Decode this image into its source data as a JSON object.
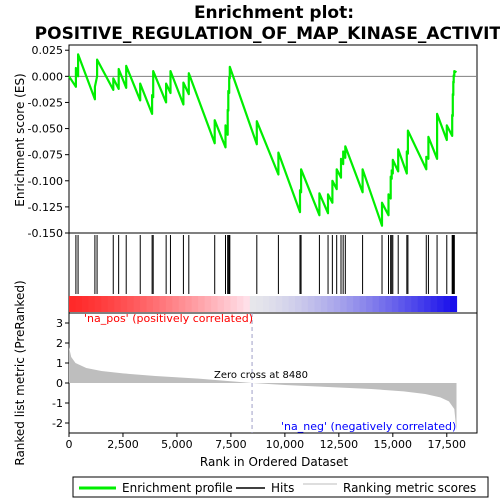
{
  "chart_data": {
    "type": "line",
    "title": "Enrichment plot:\nPOSITIVE_REGULATION_OF_MAP_KINASE_ACTIVITY",
    "x_axis": {
      "label": "Rank in Ordered Dataset",
      "range": [
        0,
        18900
      ],
      "ticks": [
        0,
        2500,
        5000,
        7500,
        10000,
        12500,
        15000,
        17500
      ],
      "tick_labels": [
        "0",
        "2,500",
        "5,000",
        "7,500",
        "10,000",
        "12,500",
        "15,000",
        "17,500"
      ]
    },
    "es_panel": {
      "ylabel": "Enrichment score (ES)",
      "ylim": [
        -0.15,
        0.03
      ],
      "ticks": [
        0.025,
        0.0,
        -0.025,
        -0.05,
        -0.075,
        -0.1,
        -0.125,
        -0.15
      ],
      "tick_labels": [
        "0.025",
        "0.000",
        "-0.025",
        "-0.050",
        "-0.075",
        "-0.100",
        "-0.125",
        "-0.150"
      ],
      "color": "#00ee00"
    },
    "ranked_panel": {
      "ylabel": "Ranked list metric (PreRanked)",
      "ylim": [
        -2.5,
        3.5
      ],
      "ticks": [
        3,
        2,
        1,
        0,
        -1,
        -2
      ],
      "tick_labels": [
        "3",
        "2",
        "1",
        "0",
        "-1",
        "-2"
      ],
      "color": "#bebebe",
      "metric_curve": [
        [
          0,
          1.8
        ],
        [
          100,
          1.3
        ],
        [
          300,
          1.0
        ],
        [
          800,
          0.75
        ],
        [
          1500,
          0.6
        ],
        [
          2500,
          0.48
        ],
        [
          4000,
          0.35
        ],
        [
          6000,
          0.22
        ],
        [
          8480,
          0.0
        ],
        [
          10000,
          -0.1
        ],
        [
          12000,
          -0.2
        ],
        [
          14000,
          -0.3
        ],
        [
          15500,
          -0.42
        ],
        [
          16500,
          -0.55
        ],
        [
          17200,
          -0.72
        ],
        [
          17600,
          -0.92
        ],
        [
          17850,
          -1.3
        ],
        [
          17950,
          -2.4
        ]
      ]
    },
    "zero_cross_label": "Zero cross at 8480",
    "zero_cross": 8480,
    "pos_label": "'na_pos' (positively correlated)",
    "neg_label": "'na_neg' (negatively correlated)",
    "hits": [
      320,
      420,
      1200,
      1300,
      2050,
      2300,
      2650,
      3300,
      3850,
      3900,
      4500,
      4700,
      5300,
      5550,
      6750,
      7250,
      7350,
      7380,
      7420,
      7450,
      8700,
      9700,
      10700,
      10750,
      11600,
      12000,
      12200,
      12400,
      12600,
      12700,
      12800,
      13600,
      14500,
      14800,
      14900,
      14950,
      15000,
      15250,
      15650,
      15700,
      16550,
      16650,
      17050,
      17500,
      17750,
      17780,
      17800,
      17820,
      17850
    ],
    "es_curve": [
      [
        0,
        0.0
      ],
      [
        320,
        -0.01
      ],
      [
        320,
        0.008
      ],
      [
        420,
        0.0
      ],
      [
        420,
        0.021
      ],
      [
        1200,
        -0.022
      ],
      [
        1200,
        -0.01
      ],
      [
        1300,
        0.0
      ],
      [
        1300,
        0.016
      ],
      [
        2050,
        -0.013
      ],
      [
        2050,
        -0.002
      ],
      [
        2300,
        -0.012
      ],
      [
        2300,
        0.007
      ],
      [
        2650,
        -0.011
      ],
      [
        2650,
        0.01
      ],
      [
        3300,
        -0.023
      ],
      [
        3300,
        -0.007
      ],
      [
        3850,
        -0.036
      ],
      [
        3850,
        -0.018
      ],
      [
        3900,
        -0.02
      ],
      [
        3900,
        0.005
      ],
      [
        4500,
        -0.025
      ],
      [
        4500,
        -0.007
      ],
      [
        4700,
        -0.016
      ],
      [
        4700,
        0.005
      ],
      [
        5300,
        -0.027
      ],
      [
        5300,
        -0.006
      ],
      [
        5550,
        -0.017
      ],
      [
        5550,
        0.003
      ],
      [
        6750,
        -0.064
      ],
      [
        6750,
        -0.042
      ],
      [
        7250,
        -0.068
      ],
      [
        7250,
        -0.047
      ],
      [
        7350,
        -0.056
      ],
      [
        7350,
        -0.032
      ],
      [
        7380,
        -0.033
      ],
      [
        7380,
        -0.014
      ],
      [
        7420,
        -0.016
      ],
      [
        7420,
        -0.001
      ],
      [
        7450,
        -0.002
      ],
      [
        7450,
        0.009
      ],
      [
        8700,
        -0.065
      ],
      [
        8700,
        -0.043
      ],
      [
        9700,
        -0.094
      ],
      [
        9700,
        -0.073
      ],
      [
        10700,
        -0.13
      ],
      [
        10700,
        -0.109
      ],
      [
        10750,
        -0.111
      ],
      [
        10750,
        -0.089
      ],
      [
        11600,
        -0.133
      ],
      [
        11600,
        -0.112
      ],
      [
        12000,
        -0.131
      ],
      [
        12000,
        -0.113
      ],
      [
        12200,
        -0.121
      ],
      [
        12200,
        -0.1
      ],
      [
        12400,
        -0.108
      ],
      [
        12400,
        -0.089
      ],
      [
        12600,
        -0.097
      ],
      [
        12600,
        -0.079
      ],
      [
        12700,
        -0.084
      ],
      [
        12700,
        -0.072
      ],
      [
        12800,
        -0.078
      ],
      [
        12800,
        -0.067
      ],
      [
        13600,
        -0.111
      ],
      [
        13600,
        -0.089
      ],
      [
        14500,
        -0.143
      ],
      [
        14500,
        -0.121
      ],
      [
        14800,
        -0.133
      ],
      [
        14800,
        -0.113
      ],
      [
        14900,
        -0.117
      ],
      [
        14900,
        -0.096
      ],
      [
        14950,
        -0.098
      ],
      [
        14950,
        -0.09
      ],
      [
        15000,
        -0.093
      ],
      [
        15000,
        -0.08
      ],
      [
        15250,
        -0.091
      ],
      [
        15250,
        -0.07
      ],
      [
        15650,
        -0.093
      ],
      [
        15650,
        -0.072
      ],
      [
        15700,
        -0.074
      ],
      [
        15700,
        -0.052
      ],
      [
        16550,
        -0.089
      ],
      [
        16550,
        -0.077
      ],
      [
        16650,
        -0.079
      ],
      [
        16650,
        -0.058
      ],
      [
        17050,
        -0.079
      ],
      [
        17050,
        -0.036
      ],
      [
        17500,
        -0.061
      ],
      [
        17500,
        -0.047
      ],
      [
        17750,
        -0.057
      ],
      [
        17750,
        -0.037
      ],
      [
        17780,
        -0.038
      ],
      [
        17780,
        -0.017
      ],
      [
        17800,
        -0.018
      ],
      [
        17800,
        -0.005
      ],
      [
        17820,
        -0.006
      ],
      [
        17820,
        0.001
      ],
      [
        17850,
        0.0
      ],
      [
        17850,
        0.005
      ],
      [
        17950,
        0.004
      ]
    ],
    "legend": [
      {
        "label": "Enrichment profile",
        "color": "#00ee00"
      },
      {
        "label": "Hits",
        "color": "#000000"
      },
      {
        "label": "Ranking metric scores",
        "color": "#bebebe"
      }
    ]
  }
}
